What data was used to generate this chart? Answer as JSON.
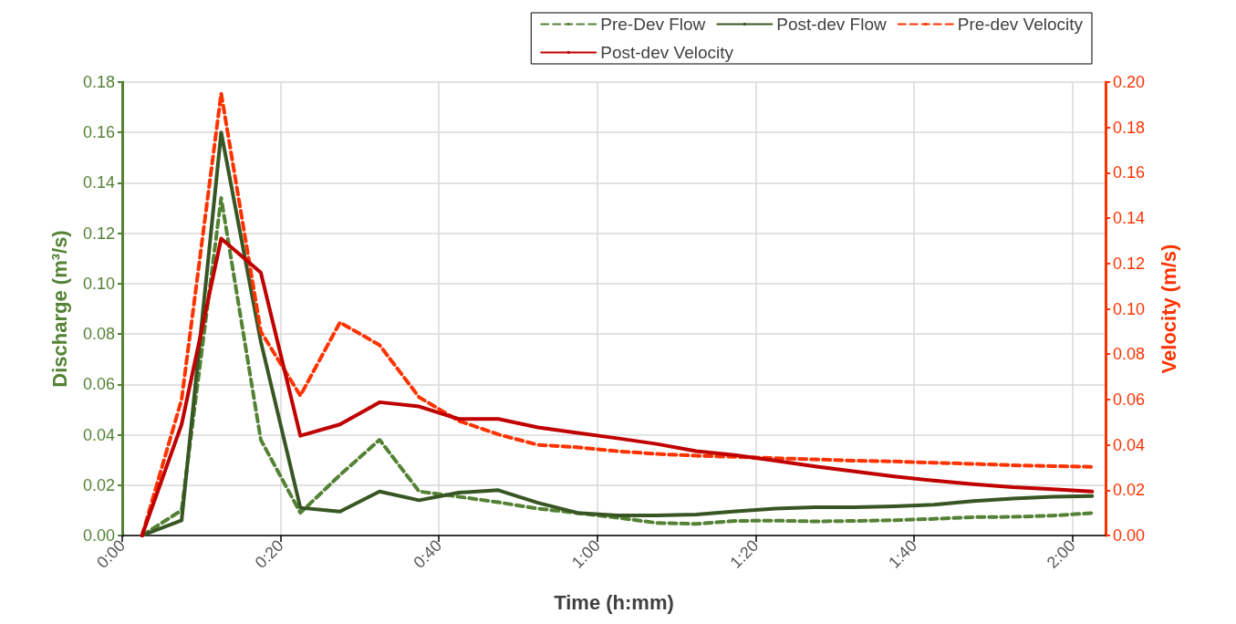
{
  "chart_data": {
    "type": "line",
    "xlabel": "Time (h:mm)",
    "ylabel": "Discharge (m³/s)",
    "y2label": "Velocity (m/s)",
    "x": [
      0.0417,
      0.125,
      0.2083,
      0.2917,
      0.375,
      0.4583,
      0.5417,
      0.625,
      0.7083,
      0.7917,
      0.875,
      0.9583,
      1.0417,
      1.125,
      1.2083,
      1.2917,
      1.375,
      1.4583,
      1.5417,
      1.625,
      1.7083,
      1.7917,
      1.875,
      1.9583,
      2.0417
    ],
    "series": [
      {
        "name": "Pre-Dev Flow",
        "color": "#548235",
        "line_style": "dashed",
        "values": [
          0,
          0.01,
          0.134,
          0.038,
          0.009,
          0.024,
          0.038,
          0.0175,
          0.0154,
          0.0132,
          0.0107,
          0.0089,
          0.0071,
          0.005,
          0.0046,
          0.0058,
          0.0059,
          0.0056,
          0.0058,
          0.0061,
          0.0066,
          0.0073,
          0.0074,
          0.0079,
          0.0089
        ]
      },
      {
        "name": "Post-dev Flow",
        "color": "#375623",
        "line_style": "solid",
        "values": [
          0,
          0.006,
          0.16,
          0.077,
          0.011,
          0.0095,
          0.0175,
          0.014,
          0.017,
          0.018,
          0.013,
          0.009,
          0.008,
          0.008,
          0.0083,
          0.0096,
          0.0107,
          0.0112,
          0.0112,
          0.0116,
          0.0122,
          0.0137,
          0.0147,
          0.0154,
          0.0157
        ]
      },
      {
        "name": "Pre-dev Velocity",
        "color": "#ff3300",
        "line_style": "dashed",
        "axis": "y2",
        "values": [
          0,
          0.06,
          0.195,
          0.09,
          0.0617,
          0.094,
          0.084,
          0.061,
          0.0506,
          0.0446,
          0.04,
          0.0389,
          0.0372,
          0.036,
          0.0352,
          0.0347,
          0.0341,
          0.0336,
          0.033,
          0.0327,
          0.0321,
          0.0316,
          0.031,
          0.0306,
          0.0303
        ]
      },
      {
        "name": "Post-dev Velocity",
        "color": "#c00000",
        "line_style": "solid",
        "axis": "y2",
        "values": [
          0,
          0.049,
          0.131,
          0.116,
          0.044,
          0.049,
          0.0588,
          0.0569,
          0.0514,
          0.0514,
          0.0477,
          0.0453,
          0.0429,
          0.0404,
          0.0372,
          0.0354,
          0.033,
          0.0305,
          0.0283,
          0.0261,
          0.0242,
          0.0226,
          0.0213,
          0.0204,
          0.0194
        ]
      }
    ],
    "xlim": [
      0,
      2.07
    ],
    "xticks": [
      {
        "value": 0,
        "label": "0:00"
      },
      {
        "value": 0.3333,
        "label": "0:20"
      },
      {
        "value": 0.6667,
        "label": "0:40"
      },
      {
        "value": 1,
        "label": "1:00"
      },
      {
        "value": 1.3333,
        "label": "1:20"
      },
      {
        "value": 1.6667,
        "label": "1:40"
      },
      {
        "value": 2,
        "label": "2:00"
      }
    ],
    "ylim": [
      0,
      0.18
    ],
    "yticks": [
      {
        "value": 0,
        "label": "0.00"
      },
      {
        "value": 0.02,
        "label": "0.02"
      },
      {
        "value": 0.04,
        "label": "0.04"
      },
      {
        "value": 0.06,
        "label": "0.06"
      },
      {
        "value": 0.08,
        "label": "0.08"
      },
      {
        "value": 0.1,
        "label": "0.10"
      },
      {
        "value": 0.12,
        "label": "0.12"
      },
      {
        "value": 0.14,
        "label": "0.14"
      },
      {
        "value": 0.16,
        "label": "0.16"
      },
      {
        "value": 0.18,
        "label": "0.18"
      }
    ],
    "y2lim": [
      0,
      0.2
    ],
    "y2ticks": [
      {
        "value": 0,
        "label": "0.00"
      },
      {
        "value": 0.02,
        "label": "0.02"
      },
      {
        "value": 0.04,
        "label": "0.04"
      },
      {
        "value": 0.06,
        "label": "0.06"
      },
      {
        "value": 0.08,
        "label": "0.08"
      },
      {
        "value": 0.1,
        "label": "0.10"
      },
      {
        "value": 0.12,
        "label": "0.12"
      },
      {
        "value": 0.14,
        "label": "0.14"
      },
      {
        "value": 0.16,
        "label": "0.16"
      },
      {
        "value": 0.18,
        "label": "0.18"
      },
      {
        "value": 0.2,
        "label": "0.20"
      }
    ],
    "grid": true,
    "legend": "top right",
    "marker": "none"
  }
}
